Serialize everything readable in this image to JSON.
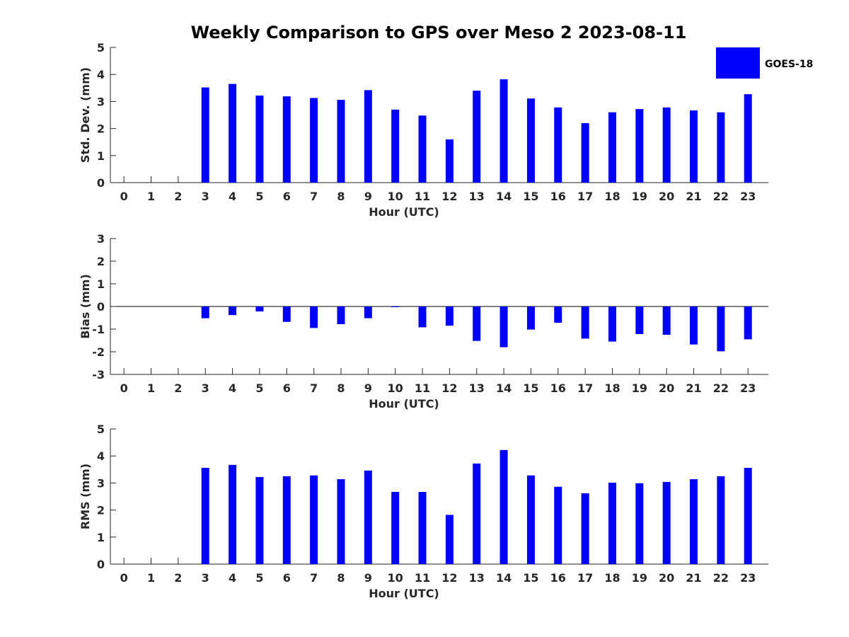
{
  "title": "Weekly Comparison to GPS over Meso 2 2023-08-11",
  "legend": {
    "label": "GOES-18",
    "color": "#0000FF"
  },
  "chart_data": [
    {
      "type": "bar",
      "x": [
        0,
        1,
        2,
        3,
        4,
        5,
        6,
        7,
        8,
        9,
        10,
        11,
        12,
        13,
        14,
        15,
        16,
        17,
        18,
        19,
        20,
        21,
        22,
        23
      ],
      "tick_labels": [
        "0",
        "1",
        "2",
        "3",
        "4",
        "5",
        "6",
        "7",
        "8",
        "9",
        "10",
        "11",
        "12",
        "13",
        "14",
        "15",
        "16",
        "17",
        "18",
        "19",
        "20",
        "21",
        "22",
        "23"
      ],
      "series": [
        {
          "name": "GOES-18",
          "values": [
            null,
            null,
            null,
            3.52,
            3.65,
            3.22,
            3.19,
            3.13,
            3.06,
            3.42,
            2.7,
            2.48,
            1.6,
            3.4,
            3.82,
            3.11,
            2.78,
            2.2,
            2.6,
            2.72,
            2.78,
            2.67,
            2.6,
            3.27
          ]
        }
      ],
      "xlabel": "Hour (UTC)",
      "ylabel": "Std. Dev. (mm)",
      "ylim": [
        0,
        5
      ],
      "yticks": [
        0,
        1,
        2,
        3,
        4,
        5
      ],
      "grid": false
    },
    {
      "type": "bar",
      "x": [
        0,
        1,
        2,
        3,
        4,
        5,
        6,
        7,
        8,
        9,
        10,
        11,
        12,
        13,
        14,
        15,
        16,
        17,
        18,
        19,
        20,
        21,
        22,
        23
      ],
      "tick_labels": [
        "0",
        "1",
        "2",
        "3",
        "4",
        "5",
        "6",
        "7",
        "8",
        "9",
        "10",
        "11",
        "12",
        "13",
        "14",
        "15",
        "16",
        "17",
        "18",
        "19",
        "20",
        "21",
        "22",
        "23"
      ],
      "series": [
        {
          "name": "GOES-18",
          "values": [
            null,
            null,
            null,
            -0.52,
            -0.38,
            -0.22,
            -0.68,
            -0.95,
            -0.78,
            -0.52,
            -0.03,
            -0.92,
            -0.85,
            -1.52,
            -1.8,
            -1.02,
            -0.72,
            -1.42,
            -1.55,
            -1.22,
            -1.25,
            -1.68,
            -1.98,
            -1.45
          ]
        }
      ],
      "xlabel": "Hour (UTC)",
      "ylabel": "Bias (mm)",
      "ylim": [
        -3,
        3
      ],
      "yticks": [
        -3,
        -2,
        -1,
        0,
        1,
        2,
        3
      ],
      "zero_line": true,
      "grid": false
    },
    {
      "type": "bar",
      "x": [
        0,
        1,
        2,
        3,
        4,
        5,
        6,
        7,
        8,
        9,
        10,
        11,
        12,
        13,
        14,
        15,
        16,
        17,
        18,
        19,
        20,
        21,
        22,
        23
      ],
      "tick_labels": [
        "0",
        "1",
        "2",
        "3",
        "4",
        "5",
        "6",
        "7",
        "8",
        "9",
        "10",
        "11",
        "12",
        "13",
        "14",
        "15",
        "16",
        "17",
        "18",
        "19",
        "20",
        "21",
        "22",
        "23"
      ],
      "series": [
        {
          "name": "GOES-18",
          "values": [
            null,
            null,
            null,
            3.56,
            3.67,
            3.22,
            3.25,
            3.28,
            3.14,
            3.46,
            2.67,
            2.67,
            1.82,
            3.72,
            4.22,
            3.28,
            2.86,
            2.62,
            3.01,
            2.99,
            3.04,
            3.14,
            3.25,
            3.56
          ]
        }
      ],
      "xlabel": "Hour (UTC)",
      "ylabel": "RMS (mm)",
      "ylim": [
        0,
        5
      ],
      "yticks": [
        0,
        1,
        2,
        3,
        4,
        5
      ],
      "grid": false
    }
  ]
}
